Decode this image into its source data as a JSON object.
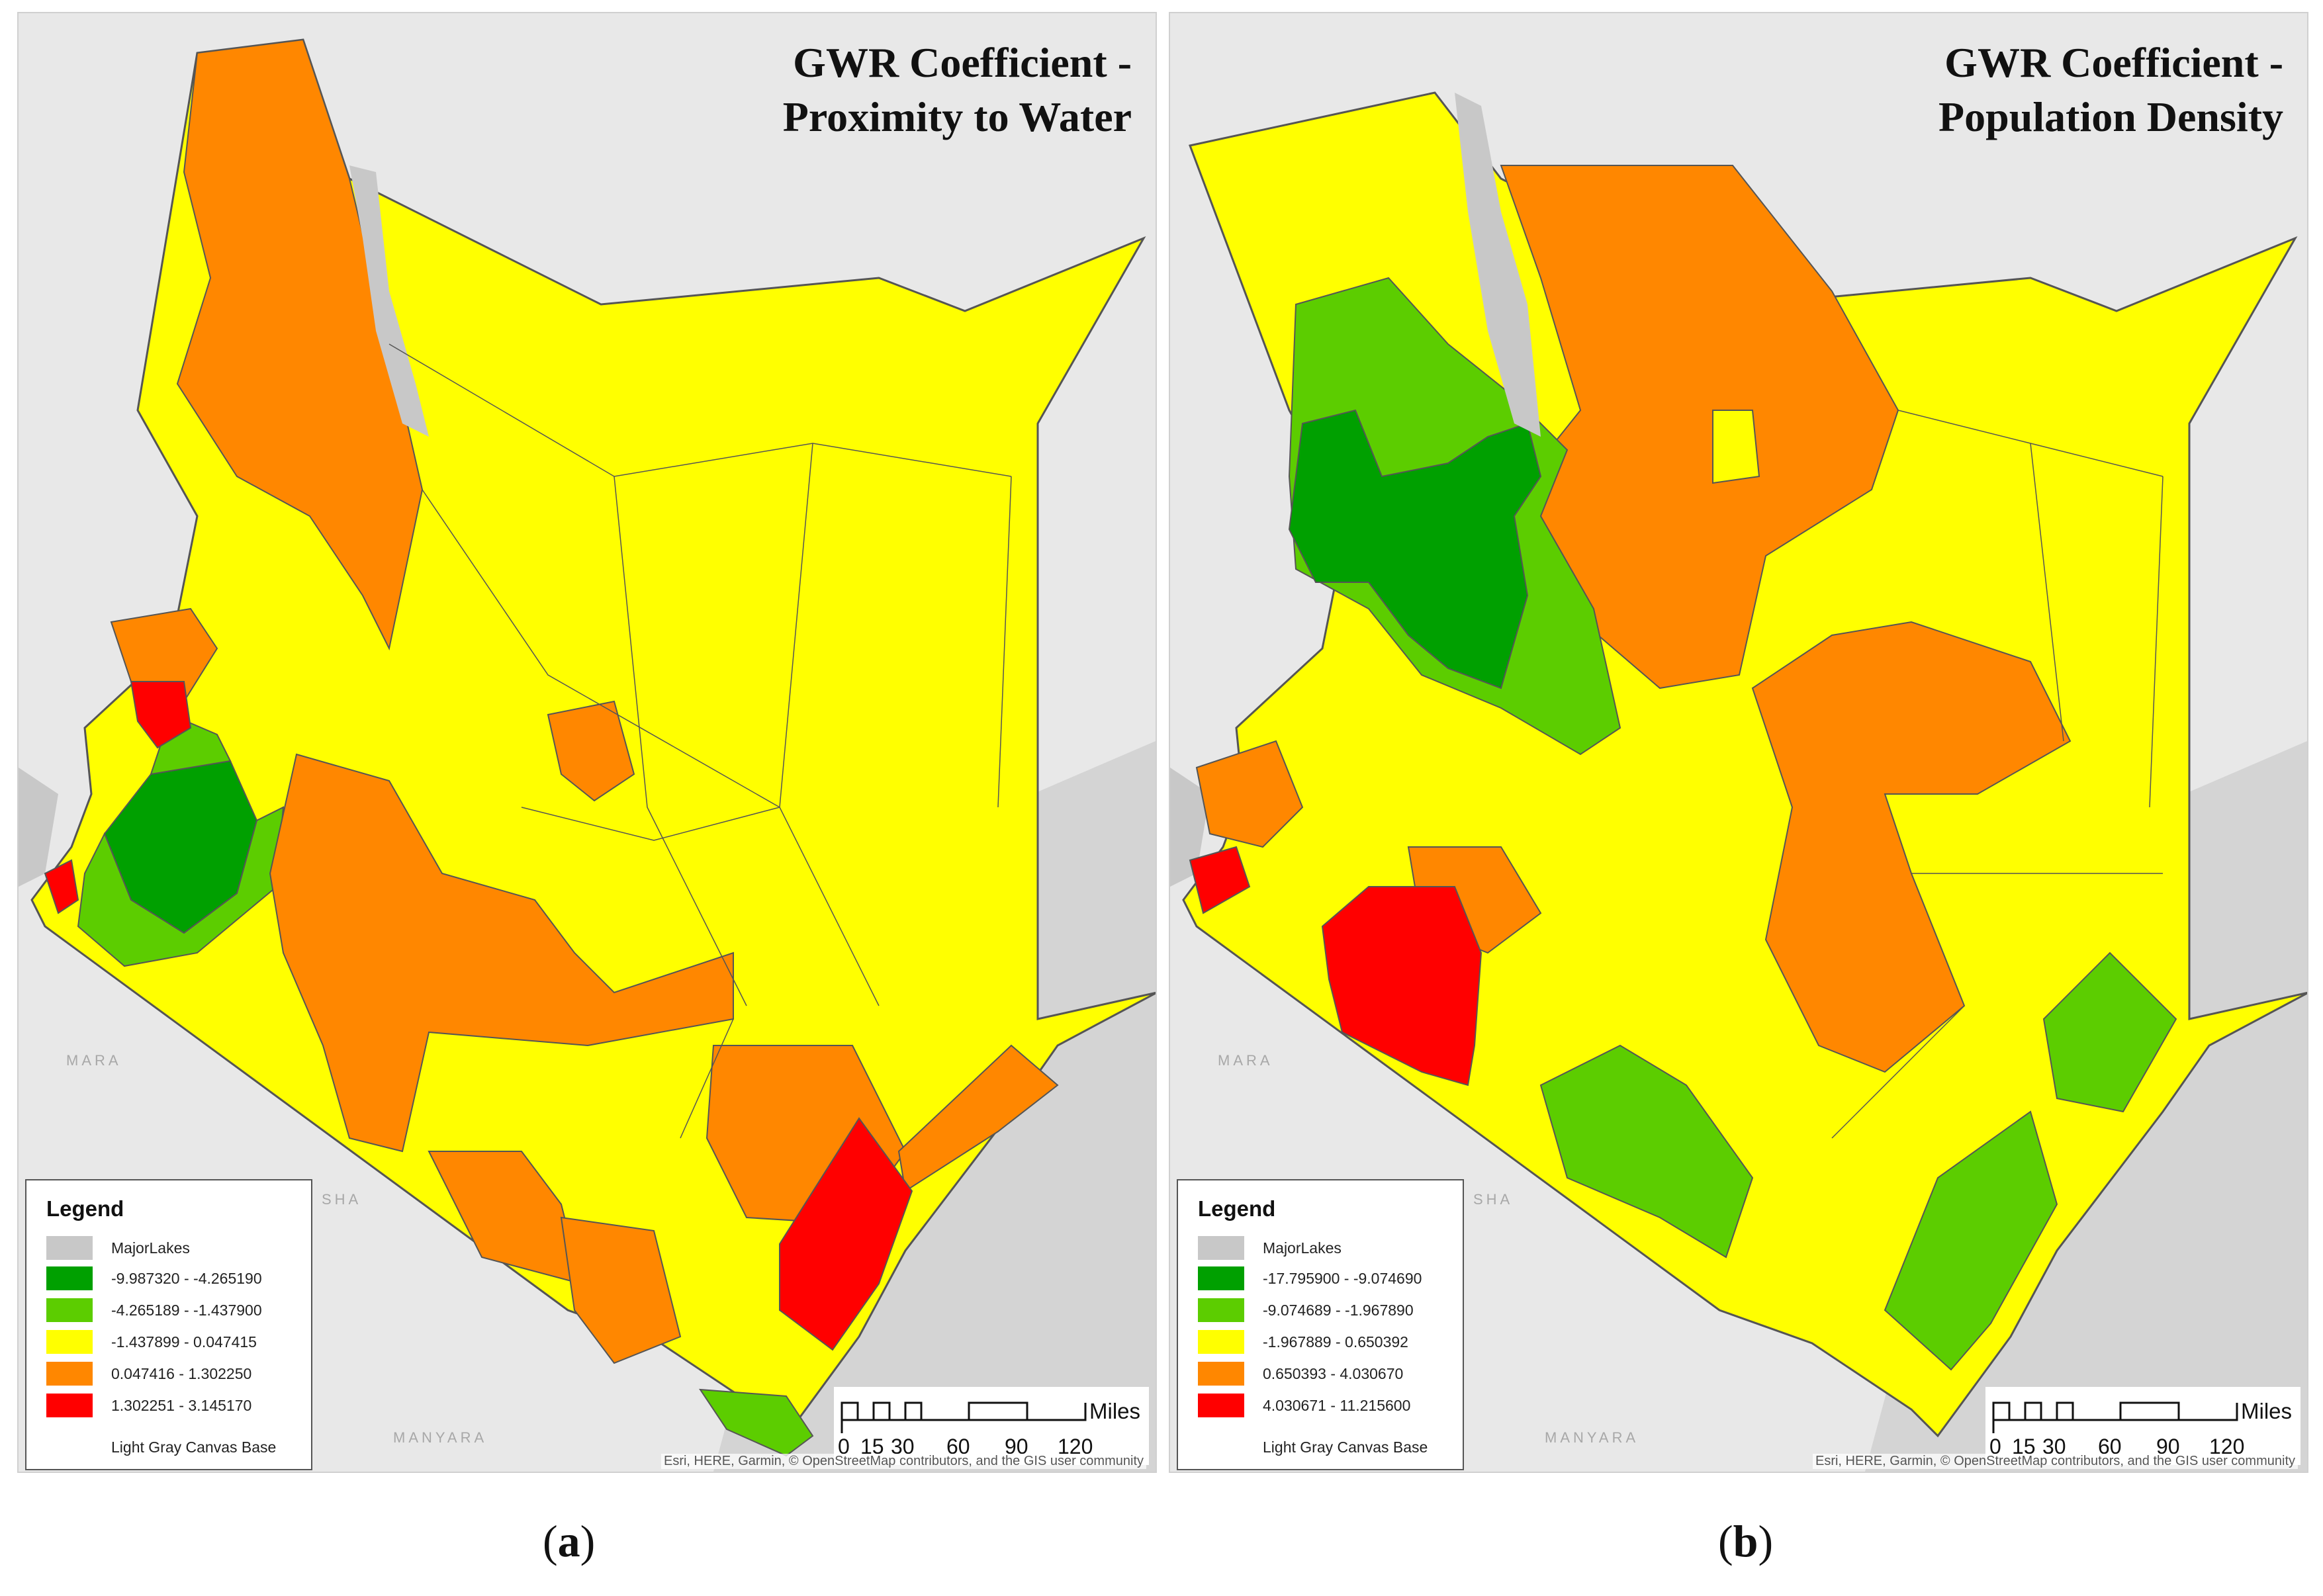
{
  "panels": [
    {
      "id": "a",
      "title_line1": "GWR Coefficient -",
      "title_line2": "Proximity to Water",
      "caption_letter": "a",
      "legend": {
        "title": "Legend",
        "lakes_label": "MajorLakes",
        "classes": [
          {
            "label": "-9.987320 - -4.265190",
            "color": "#00a000"
          },
          {
            "label": "-4.265189 - -1.437900",
            "color": "#5ccd00"
          },
          {
            "label": "-1.437899 - 0.047415",
            "color": "#ffff00"
          },
          {
            "label": "0.047416 - 1.302250",
            "color": "#ff8700"
          },
          {
            "label": "1.302251 - 3.145170",
            "color": "#ff0000"
          }
        ],
        "base_label": "Light Gray Canvas Base"
      },
      "places": [
        "MARA",
        "SHA",
        "MANYARA"
      ]
    },
    {
      "id": "b",
      "title_line1": "GWR Coefficient -",
      "title_line2": "Population Density",
      "caption_letter": "b",
      "legend": {
        "title": "Legend",
        "lakes_label": "MajorLakes",
        "classes": [
          {
            "label": "-17.795900 - -9.074690",
            "color": "#00a000"
          },
          {
            "label": "-9.074689 - -1.967890",
            "color": "#5ccd00"
          },
          {
            "label": "-1.967889 - 0.650392",
            "color": "#ffff00"
          },
          {
            "label": "0.650393 - 4.030670",
            "color": "#ff8700"
          },
          {
            "label": "4.030671 - 11.215600",
            "color": "#ff0000"
          }
        ],
        "base_label": "Light Gray Canvas Base"
      },
      "places": [
        "MARA",
        "SHA",
        "MANYARA"
      ]
    }
  ],
  "scale": {
    "unit": "Miles",
    "ticks": [
      "0",
      "15",
      "30",
      "60",
      "90",
      "120"
    ]
  },
  "attribution": "Esri, HERE, Garmin, © OpenStreetMap contributors, and the GIS user community",
  "colors": {
    "lakes": "#c8c8c8",
    "background": "#e6e6e6",
    "boundary": "#555555"
  }
}
